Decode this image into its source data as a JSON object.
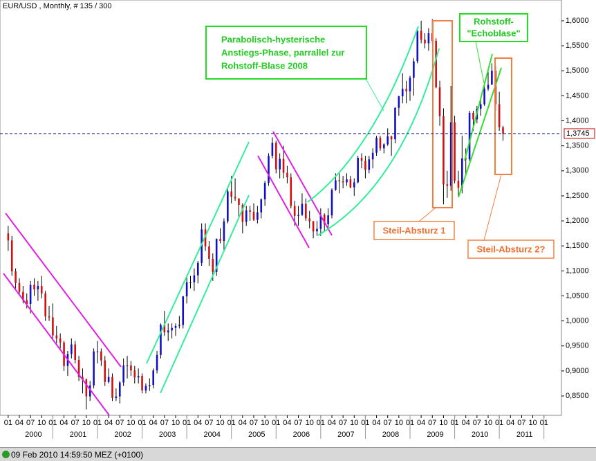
{
  "chart_data": {
    "type": "candlestick",
    "title": "EUR/USD , Monthly, # 135 / 300",
    "status": "09 Feb 2010 14:59:50  MEZ (+0100)",
    "up_color": "#1010c8",
    "down_color": "#d01010",
    "open": [
      1.175,
      1.161,
      1.099,
      1.076,
      1.058,
      1.041,
      1.034,
      1.072,
      1.063,
      1.07,
      1.055,
      1.009,
      1.007,
      0.971,
      0.965,
      0.957,
      0.91,
      0.934,
      0.953,
      0.922,
      0.888,
      0.883,
      0.849,
      0.871,
      0.939,
      0.939,
      0.921,
      0.878,
      0.888,
      0.846,
      0.849,
      0.877,
      0.911,
      0.911,
      0.901,
      0.887,
      0.89,
      0.861,
      0.87,
      0.872,
      0.901,
      0.932,
      0.992,
      0.977,
      0.981,
      0.986,
      0.99,
      0.992,
      1.049,
      1.077,
      1.077,
      1.091,
      1.116,
      1.183,
      1.149,
      1.124,
      1.098,
      1.164,
      1.16,
      1.199,
      1.259,
      1.248,
      1.245,
      1.232,
      1.198,
      1.221,
      1.218,
      1.202,
      1.217,
      1.243,
      1.276,
      1.33,
      1.356,
      1.303,
      1.324,
      1.296,
      1.287,
      1.23,
      1.21,
      1.212,
      1.234,
      1.205,
      1.199,
      1.179,
      1.184,
      1.212,
      1.193,
      1.211,
      1.262,
      1.281,
      1.279,
      1.277,
      1.283,
      1.267,
      1.277,
      1.326,
      1.32,
      1.302,
      1.323,
      1.336,
      1.366,
      1.345,
      1.353,
      1.369,
      1.363,
      1.426,
      1.449,
      1.464,
      1.459,
      1.486,
      1.519,
      1.58,
      1.562,
      1.555,
      1.575,
      1.56,
      1.467,
      1.409,
      1.273,
      1.27,
      1.397,
      1.28,
      1.266,
      1.325,
      1.323,
      1.416,
      1.403,
      1.424,
      1.433,
      1.464,
      1.472,
      1.5,
      1.433,
      1.387
    ],
    "high": [
      1.19,
      1.17,
      1.105,
      1.085,
      1.07,
      1.055,
      1.08,
      1.085,
      1.08,
      1.09,
      1.06,
      1.03,
      1.035,
      0.99,
      0.975,
      0.96,
      0.94,
      0.965,
      0.96,
      0.93,
      0.905,
      0.885,
      0.88,
      0.945,
      0.96,
      0.945,
      0.93,
      0.905,
      0.895,
      0.865,
      0.88,
      0.925,
      0.93,
      0.92,
      0.91,
      0.905,
      0.895,
      0.875,
      0.885,
      0.905,
      0.94,
      0.995,
      1.02,
      0.995,
      0.995,
      0.995,
      1.01,
      1.05,
      1.09,
      1.09,
      1.105,
      1.12,
      1.195,
      1.195,
      1.16,
      1.135,
      1.165,
      1.185,
      1.205,
      1.265,
      1.29,
      1.285,
      1.245,
      1.235,
      1.23,
      1.23,
      1.235,
      1.23,
      1.245,
      1.28,
      1.335,
      1.367,
      1.36,
      1.335,
      1.35,
      1.31,
      1.295,
      1.24,
      1.23,
      1.255,
      1.245,
      1.22,
      1.2,
      1.2,
      1.225,
      1.215,
      1.225,
      1.265,
      1.295,
      1.295,
      1.29,
      1.295,
      1.29,
      1.285,
      1.33,
      1.335,
      1.33,
      1.33,
      1.345,
      1.37,
      1.37,
      1.355,
      1.385,
      1.37,
      1.427,
      1.45,
      1.495,
      1.48,
      1.49,
      1.525,
      1.585,
      1.6,
      1.575,
      1.585,
      1.603,
      1.565,
      1.48,
      1.425,
      1.3,
      1.47,
      1.41,
      1.3,
      1.37,
      1.345,
      1.42,
      1.42,
      1.43,
      1.445,
      1.47,
      1.505,
      1.515,
      1.51,
      1.458,
      1.39
    ],
    "low": [
      1.14,
      1.09,
      1.065,
      1.05,
      1.035,
      1.025,
      1.015,
      1.05,
      1.04,
      1.045,
      1.0,
      1.0,
      0.965,
      0.955,
      0.945,
      0.9,
      0.89,
      0.925,
      0.915,
      0.88,
      0.855,
      0.823,
      0.84,
      0.865,
      0.915,
      0.91,
      0.87,
      0.875,
      0.84,
      0.84,
      0.835,
      0.87,
      0.885,
      0.89,
      0.875,
      0.875,
      0.855,
      0.855,
      0.86,
      0.865,
      0.895,
      0.925,
      0.97,
      0.96,
      0.965,
      0.97,
      0.985,
      0.985,
      1.035,
      1.065,
      1.06,
      1.075,
      1.11,
      1.14,
      1.11,
      1.08,
      1.09,
      1.155,
      1.14,
      1.195,
      1.235,
      1.24,
      1.205,
      1.175,
      1.19,
      1.2,
      1.2,
      1.195,
      1.205,
      1.23,
      1.27,
      1.325,
      1.295,
      1.285,
      1.285,
      1.275,
      1.225,
      1.19,
      1.19,
      1.21,
      1.2,
      1.185,
      1.165,
      1.17,
      1.17,
      1.18,
      1.185,
      1.205,
      1.26,
      1.255,
      1.265,
      1.27,
      1.265,
      1.25,
      1.275,
      1.305,
      1.285,
      1.295,
      1.305,
      1.33,
      1.34,
      1.335,
      1.35,
      1.33,
      1.355,
      1.41,
      1.435,
      1.435,
      1.44,
      1.45,
      1.515,
      1.555,
      1.545,
      1.54,
      1.555,
      1.465,
      1.39,
      1.233,
      1.246,
      1.26,
      1.275,
      1.25,
      1.255,
      1.29,
      1.32,
      1.38,
      1.395,
      1.41,
      1.43,
      1.46,
      1.475,
      1.42,
      1.38,
      1.36
    ],
    "close": [
      1.161,
      1.099,
      1.076,
      1.058,
      1.041,
      1.034,
      1.072,
      1.063,
      1.07,
      1.055,
      1.009,
      1.007,
      0.971,
      0.965,
      0.957,
      0.91,
      0.934,
      0.953,
      0.922,
      0.888,
      0.883,
      0.849,
      0.871,
      0.939,
      0.939,
      0.921,
      0.878,
      0.888,
      0.846,
      0.849,
      0.877,
      0.911,
      0.911,
      0.901,
      0.887,
      0.89,
      0.861,
      0.87,
      0.872,
      0.901,
      0.932,
      0.992,
      0.977,
      0.981,
      0.986,
      0.99,
      0.992,
      1.049,
      1.077,
      1.077,
      1.091,
      1.116,
      1.183,
      1.149,
      1.124,
      1.098,
      1.164,
      1.16,
      1.199,
      1.259,
      1.248,
      1.245,
      1.232,
      1.198,
      1.221,
      1.218,
      1.202,
      1.217,
      1.243,
      1.276,
      1.33,
      1.356,
      1.303,
      1.324,
      1.296,
      1.287,
      1.23,
      1.21,
      1.212,
      1.234,
      1.205,
      1.199,
      1.179,
      1.184,
      1.212,
      1.193,
      1.211,
      1.262,
      1.281,
      1.279,
      1.277,
      1.283,
      1.267,
      1.277,
      1.326,
      1.32,
      1.302,
      1.323,
      1.336,
      1.366,
      1.345,
      1.353,
      1.369,
      1.363,
      1.426,
      1.449,
      1.464,
      1.459,
      1.486,
      1.519,
      1.58,
      1.562,
      1.555,
      1.575,
      1.56,
      1.467,
      1.409,
      1.273,
      1.27,
      1.397,
      1.28,
      1.266,
      1.325,
      1.323,
      1.416,
      1.403,
      1.424,
      1.433,
      1.464,
      1.472,
      1.5,
      1.433,
      1.387,
      1.3745
    ],
    "last_price": {
      "value": 1.3745,
      "label": "1,3745"
    },
    "xlim": [
      -2.2,
      148.7
    ],
    "ylim": [
      0.8113,
      1.6415
    ],
    "yticks": [
      {
        "value": 0.85,
        "label": "0,8500"
      },
      {
        "value": 0.9,
        "label": "0,9000"
      },
      {
        "value": 0.95,
        "label": "0,9500"
      },
      {
        "value": 1.0,
        "label": "1,0000"
      },
      {
        "value": 1.05,
        "label": "1,0500"
      },
      {
        "value": 1.1,
        "label": "1,1000"
      },
      {
        "value": 1.15,
        "label": "1,1500"
      },
      {
        "value": 1.2,
        "label": "1,2000"
      },
      {
        "value": 1.25,
        "label": "1,2500"
      },
      {
        "value": 1.3,
        "label": "1,3000"
      },
      {
        "value": 1.35,
        "label": "1,3500"
      },
      {
        "value": 1.4,
        "label": "1,4000"
      },
      {
        "value": 1.45,
        "label": "1,4500"
      },
      {
        "value": 1.5,
        "label": "1,5000"
      },
      {
        "value": 1.55,
        "label": "1,5500"
      },
      {
        "value": 1.6,
        "label": "1,6000"
      }
    ],
    "xticks": [
      {
        "value": 0,
        "label": "01"
      },
      {
        "value": 3,
        "label": "04"
      },
      {
        "value": 6,
        "label": "07"
      },
      {
        "value": 9,
        "label": "10"
      },
      {
        "value": 12,
        "label": "01"
      },
      {
        "value": 15,
        "label": "04"
      },
      {
        "value": 18,
        "label": "07"
      },
      {
        "value": 21,
        "label": "10"
      },
      {
        "value": 24,
        "label": "01"
      },
      {
        "value": 27,
        "label": "04"
      },
      {
        "value": 30,
        "label": "07"
      },
      {
        "value": 33,
        "label": "10"
      },
      {
        "value": 36,
        "label": "01"
      },
      {
        "value": 39,
        "label": "04"
      },
      {
        "value": 42,
        "label": "07"
      },
      {
        "value": 45,
        "label": "10"
      },
      {
        "value": 48,
        "label": "01"
      },
      {
        "value": 51,
        "label": "04"
      },
      {
        "value": 54,
        "label": "07"
      },
      {
        "value": 57,
        "label": "10"
      },
      {
        "value": 60,
        "label": "01"
      },
      {
        "value": 63,
        "label": "04"
      },
      {
        "value": 66,
        "label": "07"
      },
      {
        "value": 69,
        "label": "10"
      },
      {
        "value": 72,
        "label": "01"
      },
      {
        "value": 75,
        "label": "04"
      },
      {
        "value": 78,
        "label": "07"
      },
      {
        "value": 81,
        "label": "10"
      },
      {
        "value": 84,
        "label": "01"
      },
      {
        "value": 87,
        "label": "04"
      },
      {
        "value": 90,
        "label": "07"
      },
      {
        "value": 93,
        "label": "10"
      },
      {
        "value": 96,
        "label": "01"
      },
      {
        "value": 99,
        "label": "04"
      },
      {
        "value": 102,
        "label": "07"
      },
      {
        "value": 105,
        "label": "10"
      },
      {
        "value": 108,
        "label": "01"
      },
      {
        "value": 111,
        "label": "04"
      },
      {
        "value": 114,
        "label": "07"
      },
      {
        "value": 117,
        "label": "10"
      },
      {
        "value": 120,
        "label": "01"
      },
      {
        "value": 123,
        "label": "04"
      },
      {
        "value": 126,
        "label": "07"
      },
      {
        "value": 129,
        "label": "10"
      },
      {
        "value": 132,
        "label": "01"
      },
      {
        "value": 135,
        "label": "04"
      },
      {
        "value": 138,
        "label": "07"
      },
      {
        "value": 141,
        "label": "10"
      },
      {
        "value": 144,
        "label": "01"
      }
    ],
    "year_labels": [
      {
        "value": 12,
        "label": "2000"
      },
      {
        "value": 24,
        "label": "2001"
      },
      {
        "value": 36,
        "label": "2002"
      },
      {
        "value": 48,
        "label": "2003"
      },
      {
        "value": 60,
        "label": "2004"
      },
      {
        "value": 72,
        "label": "2005"
      },
      {
        "value": 84,
        "label": "2006"
      },
      {
        "value": 96,
        "label": "2007"
      },
      {
        "value": 108,
        "label": "2008"
      },
      {
        "value": 120,
        "label": "2009"
      },
      {
        "value": 132,
        "label": "2010"
      },
      {
        "value": 144,
        "label": "2011"
      }
    ],
    "annotations": {
      "parabolic": [
        "Parabolisch-hysterische",
        "Anstiegs-Phase, parrallel zur",
        "Rohstoff-Blase 2008"
      ],
      "echo": [
        "Rohstoff-",
        "\"Echoblase\""
      ],
      "crash1": "Steil-Absturz 1",
      "crash2": "Steil-Absturz 2?"
    }
  }
}
